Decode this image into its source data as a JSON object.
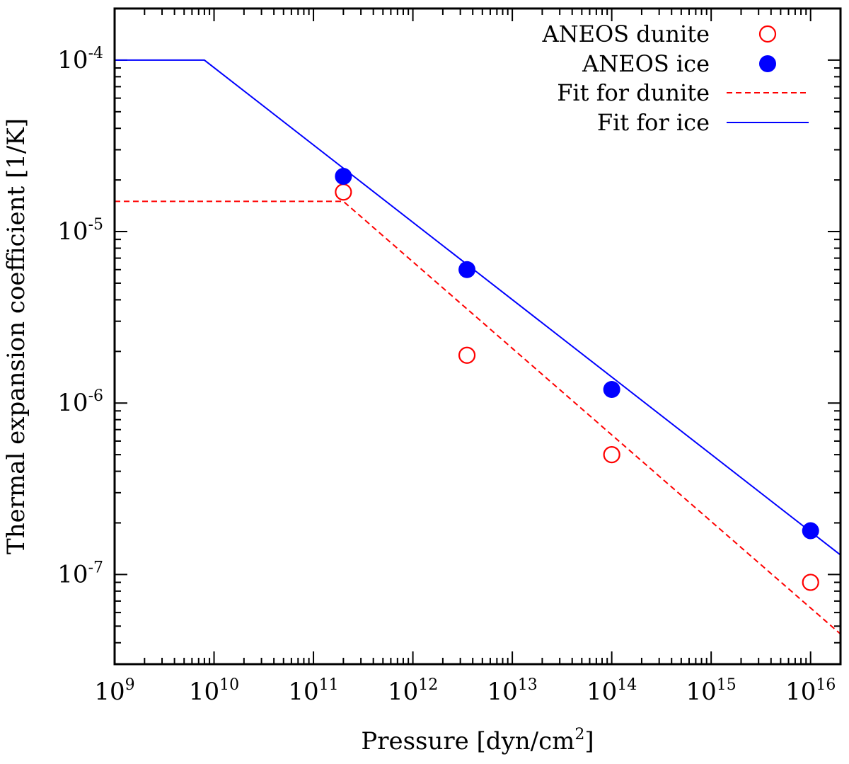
{
  "chart_data": {
    "type": "scatter",
    "title": "",
    "xlabel": "Pressure [dyn/cm",
    "xlabel_sup": "2",
    "xlabel_suffix": "]",
    "ylabel": "Thermal expansion coefficient [1/K]",
    "xscale": "log",
    "yscale": "log",
    "xlim": [
      1000000000.0,
      2e+16
    ],
    "ylim": [
      3e-08,
      0.0002
    ],
    "x_ticks": [
      {
        "base": "10",
        "exp": "9",
        "value": 1000000000.0
      },
      {
        "base": "10",
        "exp": "10",
        "value": 10000000000.0
      },
      {
        "base": "10",
        "exp": "11",
        "value": 100000000000.0
      },
      {
        "base": "10",
        "exp": "12",
        "value": 1000000000000.0
      },
      {
        "base": "10",
        "exp": "13",
        "value": 10000000000000.0
      },
      {
        "base": "10",
        "exp": "14",
        "value": 100000000000000.0
      },
      {
        "base": "10",
        "exp": "15",
        "value": 1000000000000000.0
      },
      {
        "base": "10",
        "exp": "16",
        "value": 1e+16
      }
    ],
    "y_ticks": [
      {
        "base": "10",
        "exp": "-4",
        "value": 0.0001
      },
      {
        "base": "10",
        "exp": "-5",
        "value": 1e-05
      },
      {
        "base": "10",
        "exp": "-6",
        "value": 1e-06
      },
      {
        "base": "10",
        "exp": "-7",
        "value": 1e-07
      }
    ],
    "grid": false,
    "legend_position": "top-right",
    "series": [
      {
        "name": "ANEOS dunite",
        "kind": "points",
        "marker": "open-circle",
        "color": "#ff0000",
        "x": [
          200000000000.0,
          3500000000000.0,
          100000000000000.0,
          1e+16
        ],
        "y": [
          1.7e-05,
          1.9e-06,
          5e-07,
          9e-08
        ]
      },
      {
        "name": "ANEOS ice",
        "kind": "points",
        "marker": "filled-circle",
        "color": "#0000ff",
        "x": [
          200000000000.0,
          3500000000000.0,
          100000000000000.0,
          1e+16
        ],
        "y": [
          2.1e-05,
          6e-06,
          1.2e-06,
          1.8e-07
        ]
      },
      {
        "name": "Fit for dunite",
        "kind": "line",
        "style": "dashed",
        "color": "#ff0000",
        "x": [
          1000000000.0,
          200000000000.0,
          2e+16
        ],
        "y": [
          1.5e-05,
          1.5e-05,
          4.5e-08
        ]
      },
      {
        "name": "Fit for ice",
        "kind": "line",
        "style": "solid",
        "color": "#0000ff",
        "x": [
          1000000000.0,
          8000000000.0,
          2e+16
        ],
        "y": [
          0.0001,
          0.0001,
          1.3e-07
        ]
      }
    ]
  }
}
